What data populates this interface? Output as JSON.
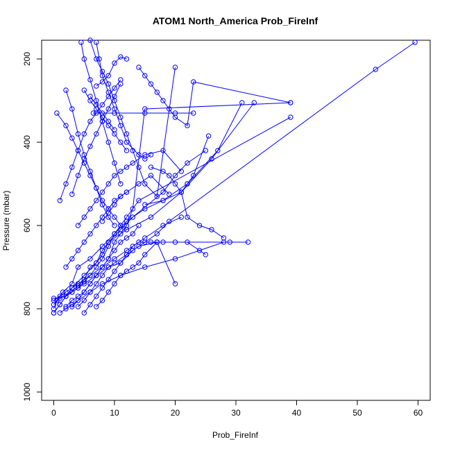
{
  "chart_data": {
    "type": "line",
    "title": "ATOM1 North_America Prob_FireInf",
    "xlabel": "Prob_FireInf",
    "ylabel": "Pressure (mbar)",
    "xlim": [
      -2,
      62
    ],
    "ylim": [
      1020,
      155
    ],
    "y_reversed": true,
    "grid": false,
    "legend": "none",
    "color": "#0000ff",
    "marker": "open-circle",
    "x_ticks": [
      0,
      10,
      20,
      30,
      40,
      50,
      60
    ],
    "y_ticks": [
      200,
      400,
      600,
      800,
      1000
    ],
    "series": [
      {
        "x": [
          0,
          1,
          2,
          3,
          5,
          7,
          8,
          9,
          11,
          13,
          18,
          20,
          22,
          25
        ],
        "y": [
          810,
          790,
          770,
          750,
          720,
          690,
          660,
          640,
          610,
          580,
          520,
          480,
          450,
          420
        ]
      },
      {
        "x": [
          0,
          0.5,
          1.5,
          3,
          4,
          6,
          8,
          10,
          12,
          15,
          18,
          22,
          27,
          31
        ],
        "y": [
          800,
          780,
          760,
          740,
          700,
          680,
          650,
          620,
          590,
          560,
          540,
          500,
          420,
          305
        ]
      },
      {
        "x": [
          0,
          1,
          2,
          4,
          5,
          6,
          7,
          8,
          9,
          12,
          16,
          21,
          26,
          33
        ],
        "y": [
          810,
          790,
          770,
          745,
          730,
          700,
          690,
          670,
          640,
          610,
          580,
          520,
          440,
          305
        ]
      },
      {
        "x": [
          0,
          1,
          3,
          4,
          5,
          6,
          7,
          8,
          9,
          10,
          11,
          12,
          14,
          39
        ],
        "y": [
          790,
          775,
          760,
          750,
          735,
          720,
          700,
          680,
          650,
          620,
          600,
          580,
          540,
          340
        ]
      },
      {
        "x": [
          0,
          1,
          2,
          3,
          4,
          6,
          8,
          9,
          10,
          11,
          12,
          13,
          15,
          39
        ],
        "y": [
          780,
          770,
          760,
          750,
          740,
          720,
          700,
          680,
          640,
          620,
          600,
          560,
          320,
          305
        ]
      },
      {
        "x": [
          0,
          2,
          3,
          4,
          5,
          7,
          9,
          11,
          13,
          15,
          17,
          19,
          53,
          59.5
        ],
        "y": [
          775,
          770,
          760,
          750,
          740,
          720,
          700,
          690,
          660,
          640,
          620,
          590,
          225,
          160
        ]
      },
      {
        "x": [
          1,
          2,
          3,
          4,
          6,
          8,
          11,
          15,
          20,
          24,
          28,
          32
        ],
        "y": [
          810,
          800,
          790,
          780,
          760,
          740,
          720,
          700,
          680,
          660,
          640,
          640
        ]
      },
      {
        "x": [
          2,
          3,
          4,
          5,
          6,
          7,
          8,
          10,
          12,
          14,
          16,
          17,
          18,
          29
        ],
        "y": [
          795,
          780,
          770,
          760,
          740,
          720,
          700,
          680,
          660,
          640,
          640,
          640,
          640,
          640
        ]
      },
      {
        "x": [
          3,
          4,
          5,
          6,
          7,
          8,
          9,
          10,
          11,
          12,
          13,
          14
        ],
        "y": [
          795,
          780,
          760,
          740,
          720,
          700,
          680,
          660,
          640,
          630,
          620,
          600
        ]
      },
      {
        "x": [
          4,
          5,
          6,
          7,
          8,
          9,
          10,
          12,
          14,
          17,
          20,
          22,
          25
        ],
        "y": [
          795,
          780,
          760,
          740,
          720,
          700,
          690,
          670,
          650,
          640,
          640,
          640,
          670
        ]
      },
      {
        "x": [
          5,
          6,
          7,
          8,
          9,
          10,
          11,
          12,
          13,
          15,
          18,
          21
        ],
        "y": [
          810,
          790,
          770,
          750,
          730,
          710,
          690,
          670,
          650,
          630,
          600,
          580
        ]
      },
      {
        "x": [
          7,
          8,
          9,
          10,
          11,
          12,
          13,
          14,
          15,
          17,
          20
        ],
        "y": [
          795,
          780,
          760,
          740,
          720,
          710,
          700,
          690,
          670,
          640,
          740
        ]
      },
      {
        "x": [
          2,
          3,
          4,
          5,
          6,
          7,
          8,
          9,
          10,
          11,
          12
        ],
        "y": [
          700,
          680,
          660,
          640,
          620,
          600,
          580,
          560,
          540,
          530,
          520
        ]
      },
      {
        "x": [
          4,
          5,
          6,
          7,
          8,
          9,
          10,
          11,
          12,
          13,
          15,
          18,
          21
        ],
        "y": [
          600,
          580,
          560,
          540,
          520,
          500,
          480,
          470,
          460,
          450,
          430,
          420,
          470
        ]
      },
      {
        "x": [
          1,
          2,
          3,
          4,
          5,
          6,
          7,
          8,
          9,
          10,
          11
        ],
        "y": [
          540,
          500,
          460,
          420,
          380,
          350,
          330,
          310,
          290,
          270,
          250
        ]
      },
      {
        "x": [
          3,
          4,
          5,
          6,
          7,
          8,
          9,
          10,
          11
        ],
        "y": [
          525,
          480,
          440,
          410,
          380,
          350,
          320,
          290,
          260
        ]
      },
      {
        "x": [
          0.5,
          2,
          3,
          4,
          5,
          6,
          7,
          8,
          9,
          10,
          11,
          12
        ],
        "y": [
          330,
          360,
          390,
          420,
          450,
          480,
          510,
          540,
          560,
          580,
          600,
          610
        ]
      },
      {
        "x": [
          2,
          3,
          4,
          5,
          6,
          7,
          8,
          9,
          10
        ],
        "y": [
          275,
          320,
          380,
          430,
          470,
          510,
          550,
          580,
          600
        ]
      },
      {
        "x": [
          5,
          6,
          7,
          8,
          9,
          10,
          11,
          12
        ],
        "y": [
          275,
          300,
          320,
          340,
          360,
          380,
          400,
          420
        ]
      },
      {
        "x": [
          6,
          7,
          8,
          9,
          10
        ],
        "y": [
          290,
          310,
          330,
          350,
          370
        ]
      },
      {
        "x": [
          7,
          8,
          9,
          10,
          11,
          12
        ],
        "y": [
          265,
          255,
          240,
          210,
          195,
          200
        ]
      },
      {
        "x": [
          4.5,
          5,
          6,
          7,
          8,
          9,
          10,
          11
        ],
        "y": [
          160,
          200,
          250,
          300,
          350,
          400,
          450,
          500
        ]
      },
      {
        "x": [
          7,
          7.5,
          8,
          9,
          10,
          11,
          12,
          14,
          15,
          16
        ],
        "y": [
          160,
          200,
          240,
          280,
          320,
          360,
          400,
          430,
          440,
          430
        ]
      },
      {
        "x": [
          6,
          7,
          8,
          9,
          10,
          11,
          12,
          13,
          14,
          15,
          17,
          20
        ],
        "y": [
          155,
          200,
          230,
          260,
          300,
          340,
          380,
          420,
          460,
          500,
          530,
          220
        ]
      },
      {
        "x": [
          14,
          15,
          16,
          17,
          18,
          19,
          20,
          22,
          23,
          39
        ],
        "y": [
          220,
          240,
          260,
          280,
          300,
          320,
          340,
          360,
          255,
          305
        ]
      },
      {
        "x": [
          6.5,
          10,
          15,
          20,
          23
        ],
        "y": [
          330,
          330,
          330,
          330,
          330
        ]
      },
      {
        "x": [
          15,
          18,
          21,
          22,
          23,
          25.5
        ],
        "y": [
          550,
          540,
          520,
          500,
          480,
          385
        ]
      },
      {
        "x": [
          16,
          18,
          19,
          20,
          21,
          22,
          24,
          26,
          28
        ],
        "y": [
          460,
          470,
          480,
          500,
          520,
          580,
          600,
          610,
          630
        ]
      },
      {
        "x": [
          8,
          9,
          10,
          11,
          12,
          14,
          16,
          19
        ],
        "y": [
          590,
          570,
          550,
          530,
          520,
          500,
          480,
          525
        ]
      }
    ]
  }
}
